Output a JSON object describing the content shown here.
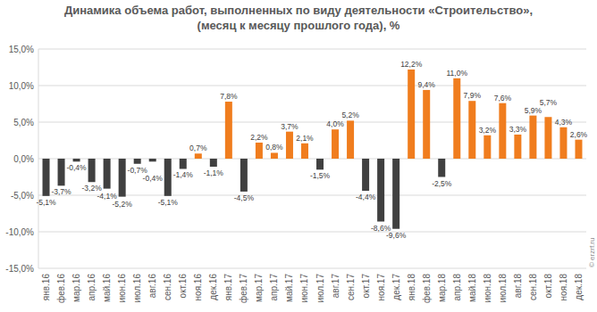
{
  "chart_data": {
    "type": "bar",
    "title": "Динамика объема работ, выполненных по виду деятельности «Строительство»,",
    "subtitle": "(месяц к месяцу прошлого года), %",
    "source": "© erzrf.ru",
    "categories": [
      "янв.16",
      "фев.16",
      "мар.16",
      "апр.16",
      "май.16",
      "июн.16",
      "июл.16",
      "авг.16",
      "сен.16",
      "окт.16",
      "ноя.16",
      "дек.16",
      "янв.17",
      "фев.17",
      "мар.17",
      "апр.17",
      "май.17",
      "июн.17",
      "июл.17",
      "авг.17",
      "сен.17",
      "окт.17",
      "ноя.17",
      "дек.17",
      "янв.18",
      "фев.18",
      "мар.18",
      "апр.18",
      "май.18",
      "июн.18",
      "июл.18",
      "авг.18",
      "сен.18",
      "окт.18",
      "ноя.18",
      "дек.18"
    ],
    "values": [
      -5.1,
      -3.7,
      -0.4,
      -3.2,
      -4.1,
      -5.2,
      -0.7,
      -0.4,
      -5.1,
      -1.4,
      0.7,
      -1.1,
      7.8,
      -4.5,
      2.2,
      0.8,
      3.7,
      2.1,
      -1.5,
      4.0,
      5.2,
      -4.4,
      -8.6,
      -9.6,
      12.2,
      9.4,
      -2.5,
      11.0,
      7.9,
      3.2,
      7.6,
      3.3,
      5.9,
      5.7,
      4.3,
      2.6
    ],
    "value_labels": [
      "-5,1%",
      "-3,7%",
      "-0,4%",
      "-3,2%",
      "-4,1%",
      "-5,2%",
      "-0,7%",
      "-0,4%",
      "-5,1%",
      "-1,4%",
      "0,7%",
      "-1,1%",
      "7,8%",
      "-4,5%",
      "2,2%",
      "0,8%",
      "3,7%",
      "2,1%",
      "-1,5%",
      "4,0%",
      "5,2%",
      "-4,4%",
      "-8,6%",
      "-9,6%",
      "12,2%",
      "9,4%",
      "-2,5%",
      "11,0%",
      "7,9%",
      "3,2%",
      "7,6%",
      "3,3%",
      "5,9%",
      "5,7%",
      "4,3%",
      "2,6%"
    ],
    "colors": [
      "#404040",
      "#404040",
      "#404040",
      "#404040",
      "#404040",
      "#404040",
      "#404040",
      "#404040",
      "#404040",
      "#404040",
      "#f07d1e",
      "#404040",
      "#f07d1e",
      "#404040",
      "#f07d1e",
      "#f07d1e",
      "#f07d1e",
      "#f07d1e",
      "#404040",
      "#f07d1e",
      "#f07d1e",
      "#404040",
      "#404040",
      "#404040",
      "#f07d1e",
      "#f07d1e",
      "#404040",
      "#f07d1e",
      "#f07d1e",
      "#f07d1e",
      "#f07d1e",
      "#f07d1e",
      "#f07d1e",
      "#f07d1e",
      "#f07d1e",
      "#f07d1e"
    ],
    "ylim": [
      -15,
      15
    ],
    "yticks": [
      {
        "value": -15,
        "label": "-15,0%"
      },
      {
        "value": -10,
        "label": "-10,0%"
      },
      {
        "value": -5,
        "label": "-5,0%"
      },
      {
        "value": 0,
        "label": "0,0%"
      },
      {
        "value": 5,
        "label": "5,0%"
      },
      {
        "value": 10,
        "label": "10,0%"
      },
      {
        "value": 15,
        "label": "15,0%"
      }
    ],
    "grid": true,
    "data_labels": true
  }
}
